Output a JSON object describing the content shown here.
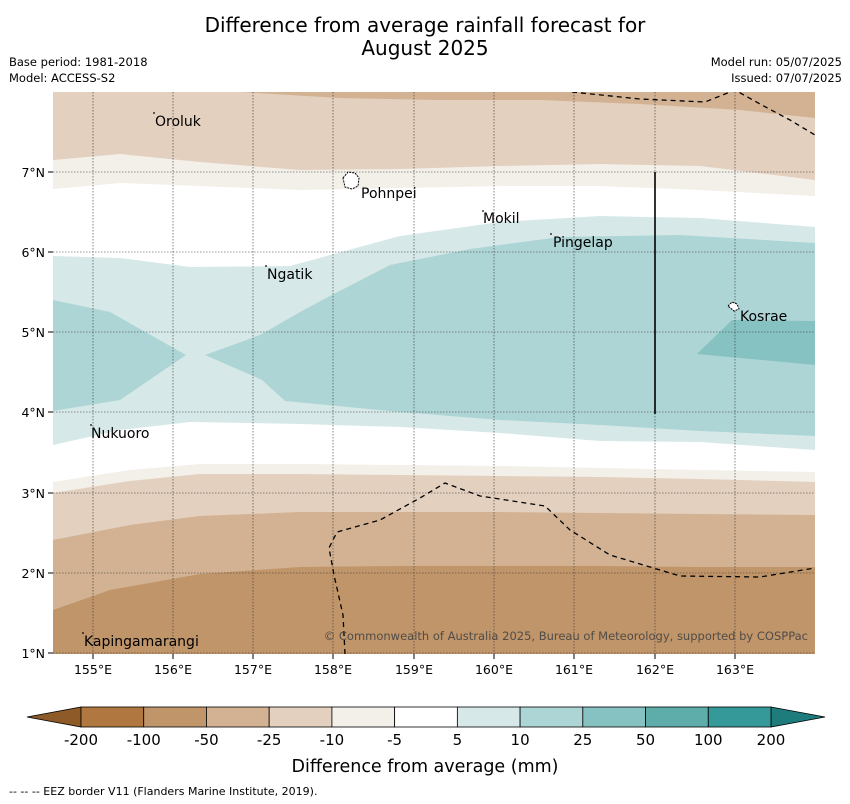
{
  "title_line1": "Difference from average rainfall forecast for",
  "title_line2": "August 2025",
  "meta": {
    "base_period": "Base period: 1981-2018",
    "model": "Model: ACCESS-S2",
    "model_run": "Model run: 05/07/2025",
    "issued": "Issued: 07/07/2025"
  },
  "map": {
    "lon_ticks": [
      "155°E",
      "156°E",
      "157°E",
      "158°E",
      "159°E",
      "160°E",
      "161°E",
      "162°E",
      "163°E"
    ],
    "lat_ticks": [
      "1°N",
      "2°N",
      "3°N",
      "4°N",
      "5°N",
      "6°N",
      "7°N"
    ],
    "places": [
      {
        "name": "Oroluk"
      },
      {
        "name": "Pohnpei"
      },
      {
        "name": "Mokil"
      },
      {
        "name": "Pingelap"
      },
      {
        "name": "Ngatik"
      },
      {
        "name": "Kosrae"
      },
      {
        "name": "Nukuoro"
      },
      {
        "name": "Kapingamarangi"
      }
    ],
    "copyright": "© Commonwealth of Australia 2025, Bureau of Meteorology, supported by COSPPac"
  },
  "colorbar": {
    "ticks": [
      "-200",
      "-100",
      "-50",
      "-25",
      "-10",
      "-5",
      "5",
      "10",
      "25",
      "50",
      "100",
      "200"
    ],
    "colors": [
      "#b07840",
      "#c1956a",
      "#d2b292",
      "#e3d0bf",
      "#f3efe9",
      "#ffffff",
      "#d6e9e8",
      "#aed5d5",
      "#86c2c1",
      "#5eadab",
      "#35999a"
    ],
    "low_extend_color": "#8e5a28",
    "high_extend_color": "#1e7c7c",
    "label": "Difference from average (mm)"
  },
  "footnote": "--  --  -- EEZ border V11 (Flanders Marine Institute, 2019)."
}
